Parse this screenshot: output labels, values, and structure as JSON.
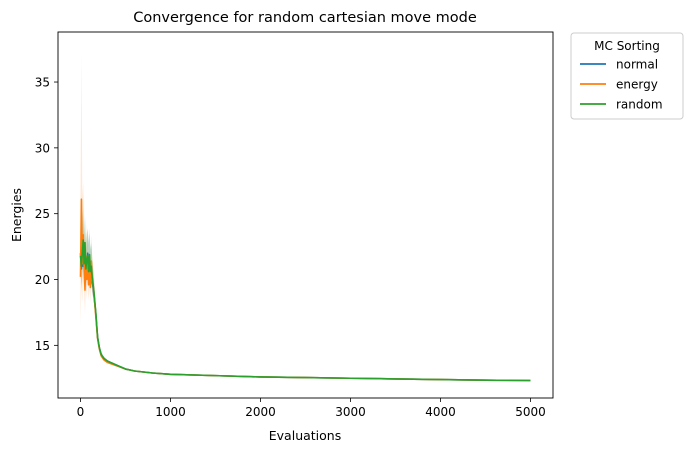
{
  "chart_data": {
    "type": "line",
    "title": "Convergence for random cartesian move mode",
    "xlabel": "Evaluations",
    "ylabel": "Energies",
    "xlim": [
      -250,
      5250
    ],
    "ylim": [
      11.0,
      38.8
    ],
    "xticks": [
      0,
      1000,
      2000,
      3000,
      4000,
      5000
    ],
    "yticks": [
      15,
      20,
      25,
      30,
      35
    ],
    "grid": false,
    "legend": {
      "title": "MC Sorting",
      "placement": "outside-top-right"
    },
    "series": [
      {
        "name": "normal",
        "color": "#1f77b4",
        "x": [
          0,
          10,
          20,
          30,
          40,
          50,
          60,
          70,
          80,
          90,
          100,
          110,
          120,
          130,
          140,
          150,
          170,
          190,
          210,
          230,
          260,
          300,
          400,
          500,
          600,
          800,
          1000,
          1500,
          2000,
          2500,
          3000,
          3500,
          4000,
          4500,
          5000
        ],
        "y": [
          22.0,
          20.8,
          22.5,
          21.0,
          22.8,
          20.6,
          21.6,
          20.2,
          22.0,
          20.8,
          21.5,
          20.4,
          20.8,
          19.8,
          19.4,
          18.8,
          17.4,
          15.6,
          14.8,
          14.3,
          14.0,
          13.8,
          13.5,
          13.2,
          13.05,
          12.9,
          12.8,
          12.7,
          12.6,
          12.55,
          12.5,
          12.45,
          12.4,
          12.35,
          12.33
        ]
      },
      {
        "name": "energy",
        "color": "#ff7f0e",
        "x": [
          0,
          10,
          20,
          30,
          40,
          50,
          60,
          70,
          80,
          90,
          100,
          110,
          120,
          130,
          140,
          150,
          170,
          190,
          210,
          230,
          260,
          300,
          400,
          500,
          600,
          800,
          1000,
          1500,
          2000,
          2500,
          3000,
          3500,
          4000,
          4500,
          5000
        ],
        "y": [
          20.2,
          26.1,
          21.2,
          23.4,
          21.0,
          19.2,
          21.8,
          20.0,
          21.4,
          19.6,
          20.6,
          19.4,
          21.4,
          20.0,
          19.6,
          18.9,
          17.2,
          15.5,
          14.7,
          14.2,
          13.9,
          13.7,
          13.45,
          13.2,
          13.05,
          12.9,
          12.8,
          12.7,
          12.6,
          12.55,
          12.5,
          12.45,
          12.4,
          12.35,
          12.33
        ]
      },
      {
        "name": "random",
        "color": "#2ca02c",
        "x": [
          0,
          10,
          20,
          30,
          40,
          50,
          60,
          70,
          80,
          90,
          100,
          110,
          120,
          130,
          140,
          150,
          170,
          190,
          210,
          230,
          260,
          300,
          400,
          500,
          600,
          800,
          1000,
          1500,
          2000,
          2500,
          3000,
          3500,
          4000,
          4500,
          5000
        ],
        "y": [
          21.8,
          21.0,
          22.0,
          23.0,
          21.2,
          22.8,
          20.8,
          21.5,
          21.8,
          20.6,
          21.9,
          20.6,
          21.0,
          20.2,
          19.6,
          19.0,
          17.5,
          15.6,
          14.8,
          14.3,
          14.0,
          13.8,
          13.5,
          13.2,
          13.05,
          12.9,
          12.8,
          12.7,
          12.6,
          12.55,
          12.5,
          12.45,
          12.4,
          12.35,
          12.33
        ]
      }
    ]
  }
}
